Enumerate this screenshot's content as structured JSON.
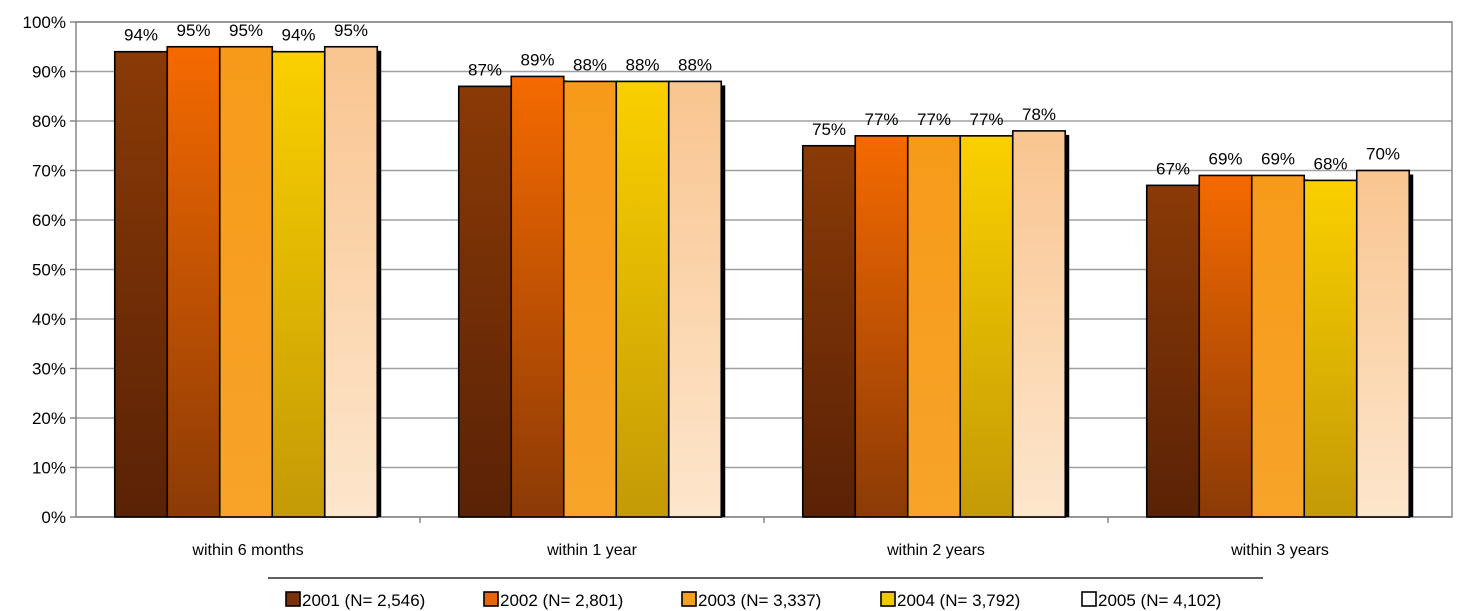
{
  "chart_data": {
    "type": "bar",
    "categories": [
      "within 6 months",
      "within 1 year",
      "within 2 years",
      "within 3 years"
    ],
    "series": [
      {
        "name": "2001 (N= 2,546)",
        "values": [
          94,
          87,
          75,
          67
        ],
        "color_top": "#8a3a06",
        "color_bottom": "#5a2206",
        "legend_color": "#7a3008"
      },
      {
        "name": "2002 (N= 2,801)",
        "values": [
          95,
          89,
          77,
          69
        ],
        "color_top": "#f56a00",
        "color_bottom": "#8c3a06",
        "legend_color": "#e8650a"
      },
      {
        "name": "2003 (N= 3,337)",
        "values": [
          95,
          88,
          77,
          69
        ],
        "color_top": "#f79a1a",
        "color_bottom": "#f7a428",
        "legend_color": "#f5a020"
      },
      {
        "name": "2004 (N= 3,792)",
        "values": [
          94,
          88,
          77,
          68
        ],
        "color_top": "#fad000",
        "color_bottom": "#c49a06",
        "legend_color": "#f0c800"
      },
      {
        "name": "2005 (N= 4,102)",
        "values": [
          95,
          88,
          78,
          70
        ],
        "color_top": "#f9c590",
        "color_bottom": "#fde6cc",
        "legend_color": "#ffffff"
      }
    ],
    "data_labels": [
      [
        "94%",
        "95%",
        "95%",
        "94%",
        "95%"
      ],
      [
        "87%",
        "89%",
        "88%",
        "88%",
        "88%"
      ],
      [
        "75%",
        "77%",
        "77%",
        "77%",
        "78%"
      ],
      [
        "67%",
        "69%",
        "69%",
        "68%",
        "70%"
      ]
    ],
    "y_ticks": [
      "0%",
      "10%",
      "20%",
      "30%",
      "40%",
      "50%",
      "60%",
      "70%",
      "80%",
      "90%",
      "100%"
    ],
    "ylim": [
      0,
      100
    ],
    "grid": true,
    "legend_position": "bottom",
    "title": "",
    "xlabel": "",
    "ylabel": ""
  }
}
